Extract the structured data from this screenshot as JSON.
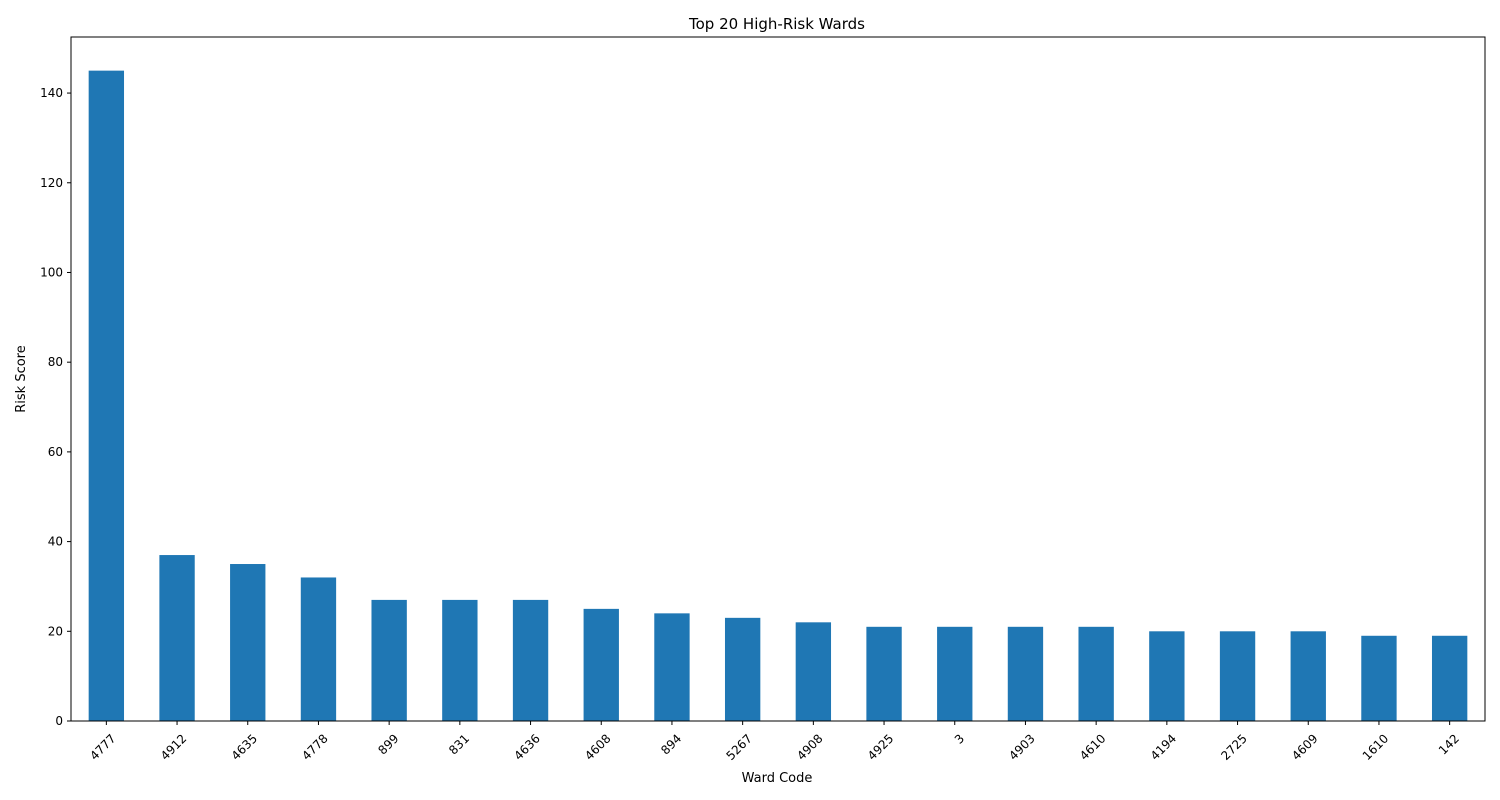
{
  "chart_data": {
    "type": "bar",
    "title": "Top 20 High-Risk Wards",
    "xlabel": "Ward Code",
    "ylabel": "Risk Score",
    "categories": [
      "4777",
      "4912",
      "4635",
      "4778",
      "899",
      "831",
      "4636",
      "4608",
      "894",
      "5267",
      "4908",
      "4925",
      "3",
      "4903",
      "4610",
      "4194",
      "2725",
      "4609",
      "1610",
      "142"
    ],
    "values": [
      145,
      37,
      35,
      32,
      27,
      27,
      27,
      25,
      24,
      23,
      22,
      21,
      21,
      21,
      21,
      20,
      20,
      20,
      19,
      19
    ],
    "ylim": [
      0,
      152.5
    ],
    "yticks": [
      0,
      20,
      40,
      60,
      80,
      100,
      120,
      140
    ],
    "grid": false,
    "legend": "none",
    "bar_color": "#1f77b4"
  }
}
